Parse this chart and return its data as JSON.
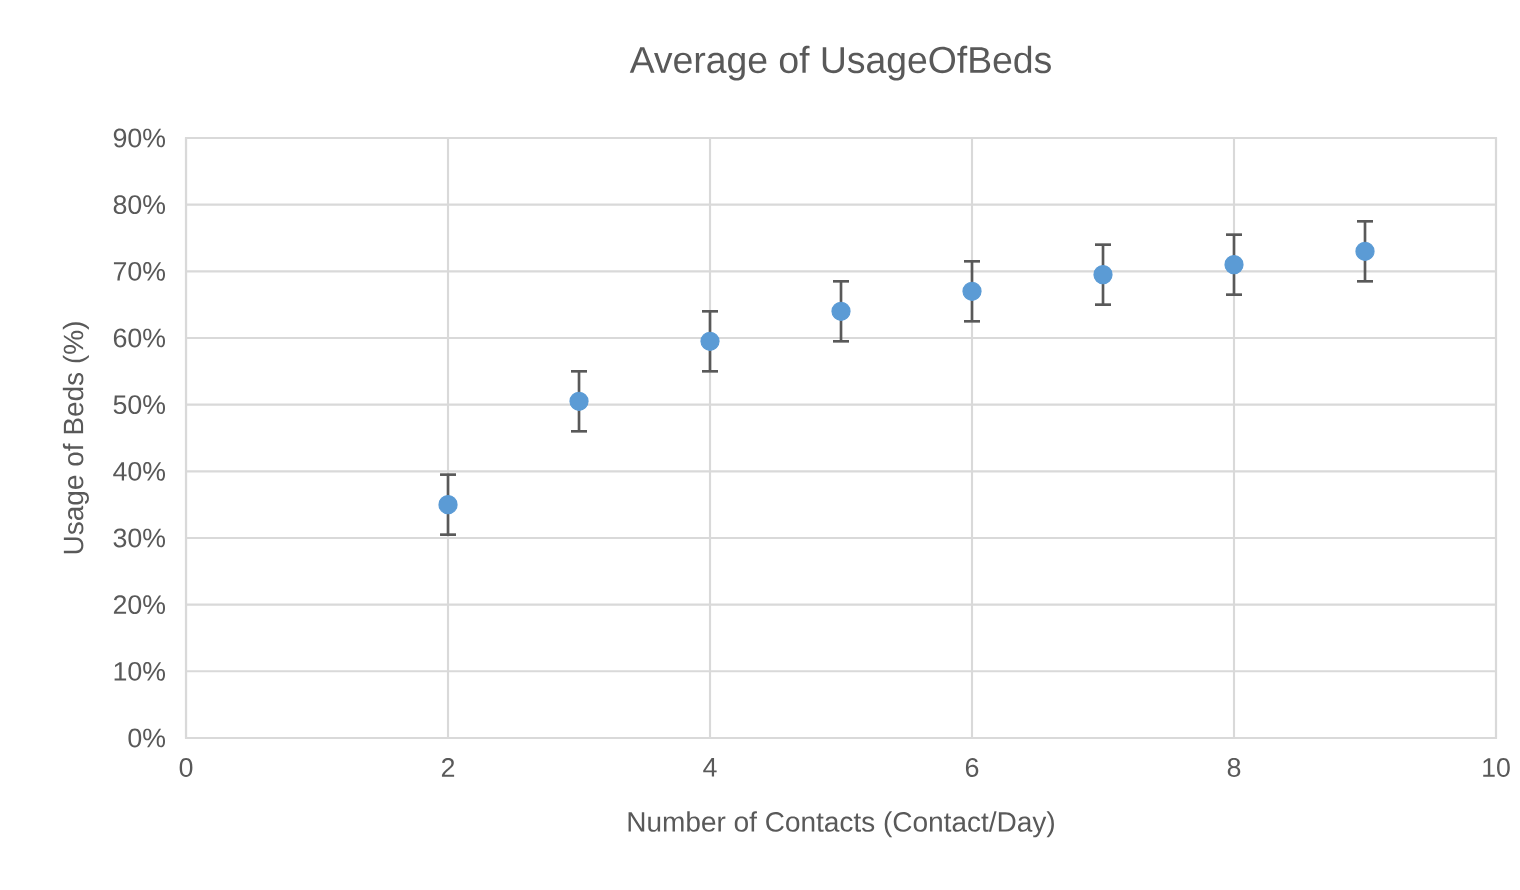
{
  "chart_data": {
    "type": "scatter",
    "title": "Average of UsageOfBeds",
    "xlabel": "Number of Contacts (Contact/Day)",
    "ylabel": "Usage of Beds (%)",
    "x": [
      2,
      3,
      4,
      5,
      6,
      7,
      8,
      9
    ],
    "values": [
      35,
      50.5,
      59.5,
      64,
      67,
      69.5,
      71,
      73
    ],
    "errors": [
      4.5,
      4.5,
      4.5,
      4.5,
      4.5,
      4.5,
      4.5,
      4.5
    ],
    "color": "#5b9bd5",
    "marker": "circle",
    "grid": true,
    "xlim": [
      0,
      10
    ],
    "xticks": [
      0,
      2,
      4,
      6,
      8,
      10
    ],
    "ylim": [
      0,
      90
    ],
    "yticks": [
      {
        "value": 0,
        "label": "0%"
      },
      {
        "value": 10,
        "label": "10%"
      },
      {
        "value": 20,
        "label": "20%"
      },
      {
        "value": 30,
        "label": "30%"
      },
      {
        "value": 40,
        "label": "40%"
      },
      {
        "value": 50,
        "label": "50%"
      },
      {
        "value": 60,
        "label": "60%"
      },
      {
        "value": 70,
        "label": "70%"
      },
      {
        "value": 80,
        "label": "80%"
      },
      {
        "value": 90,
        "label": "90%"
      }
    ]
  }
}
